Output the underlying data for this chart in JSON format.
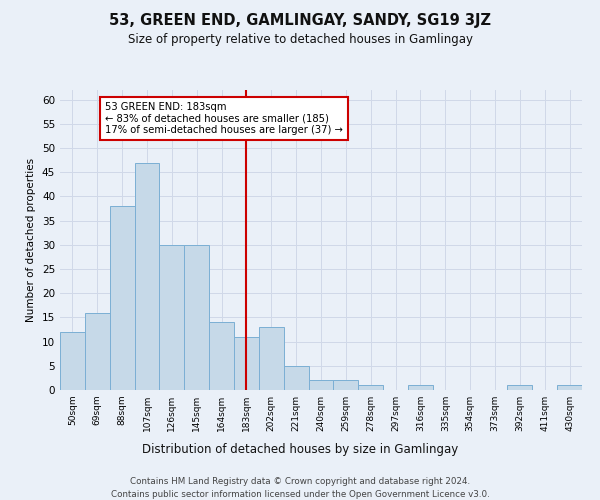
{
  "title": "53, GREEN END, GAMLINGAY, SANDY, SG19 3JZ",
  "subtitle": "Size of property relative to detached houses in Gamlingay",
  "xlabel": "Distribution of detached houses by size in Gamlingay",
  "ylabel": "Number of detached properties",
  "footer_line1": "Contains HM Land Registry data © Crown copyright and database right 2024.",
  "footer_line2": "Contains public sector information licensed under the Open Government Licence v3.0.",
  "bin_labels": [
    "50sqm",
    "69sqm",
    "88sqm",
    "107sqm",
    "126sqm",
    "145sqm",
    "164sqm",
    "183sqm",
    "202sqm",
    "221sqm",
    "240sqm",
    "259sqm",
    "278sqm",
    "297sqm",
    "316sqm",
    "335sqm",
    "354sqm",
    "373sqm",
    "392sqm",
    "411sqm",
    "430sqm"
  ],
  "bar_values": [
    12,
    16,
    38,
    47,
    30,
    30,
    14,
    11,
    13,
    5,
    2,
    2,
    1,
    0,
    1,
    0,
    0,
    0,
    1,
    0,
    1
  ],
  "bar_color": "#c6d9e8",
  "bar_edgecolor": "#7bafd4",
  "vline_x_index": 7,
  "annotation_title": "53 GREEN END: 183sqm",
  "annotation_line1": "← 83% of detached houses are smaller (185)",
  "annotation_line2": "17% of semi-detached houses are larger (37) →",
  "annotation_box_color": "#ffffff",
  "annotation_box_edgecolor": "#cc0000",
  "vline_color": "#cc0000",
  "grid_color": "#d0d8e8",
  "background_color": "#eaf0f8",
  "ylim": [
    0,
    62
  ],
  "yticks": [
    0,
    5,
    10,
    15,
    20,
    25,
    30,
    35,
    40,
    45,
    50,
    55,
    60
  ]
}
